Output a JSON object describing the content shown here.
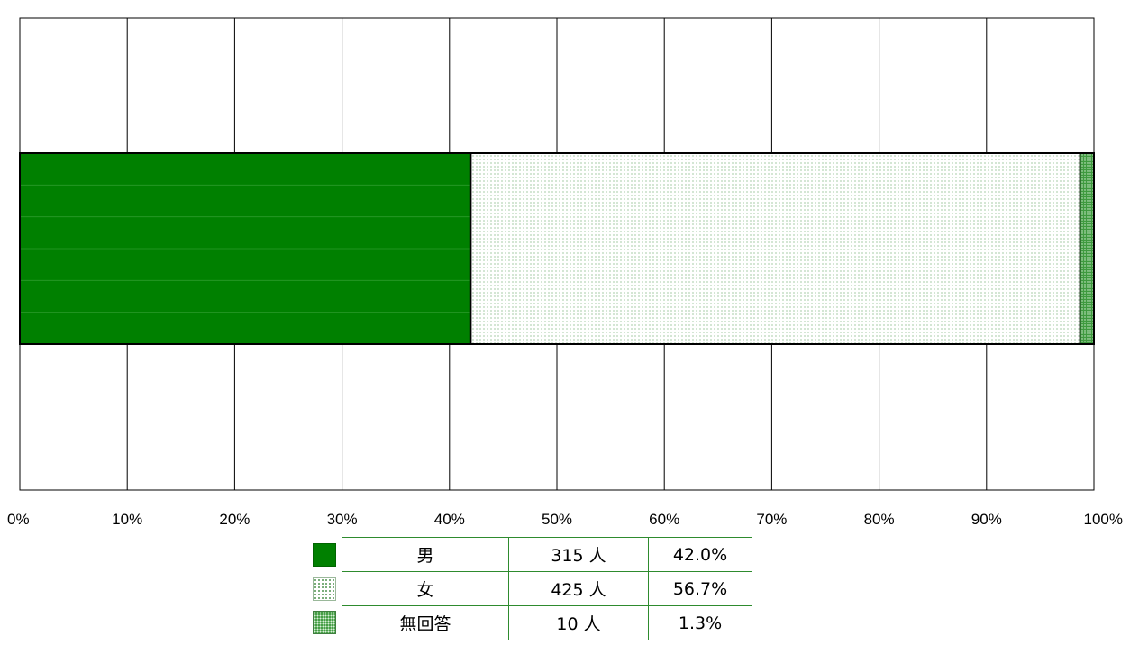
{
  "chart_data": {
    "type": "bar",
    "orientation": "horizontal",
    "stacked": true,
    "x_unit": "%",
    "xlim": [
      0,
      100
    ],
    "x_ticks": [
      "0%",
      "10%",
      "20%",
      "30%",
      "40%",
      "50%",
      "60%",
      "70%",
      "80%",
      "90%",
      "100%"
    ],
    "grid": true,
    "series": [
      {
        "name": "男",
        "count_label": "315 人",
        "percent_label": "42.0%",
        "value": 42.0,
        "color": "#008000",
        "pattern": "solid"
      },
      {
        "name": "女",
        "count_label": "425 人",
        "percent_label": "56.7%",
        "value": 56.7,
        "color": "#ffffff",
        "pattern": "sparse-dots"
      },
      {
        "name": "無回答",
        "count_label": "10 人",
        "percent_label": "1.3%",
        "value": 1.3,
        "color": "#3f9a3f",
        "pattern": "dense-dots"
      }
    ],
    "legend_position": "bottom-center"
  }
}
